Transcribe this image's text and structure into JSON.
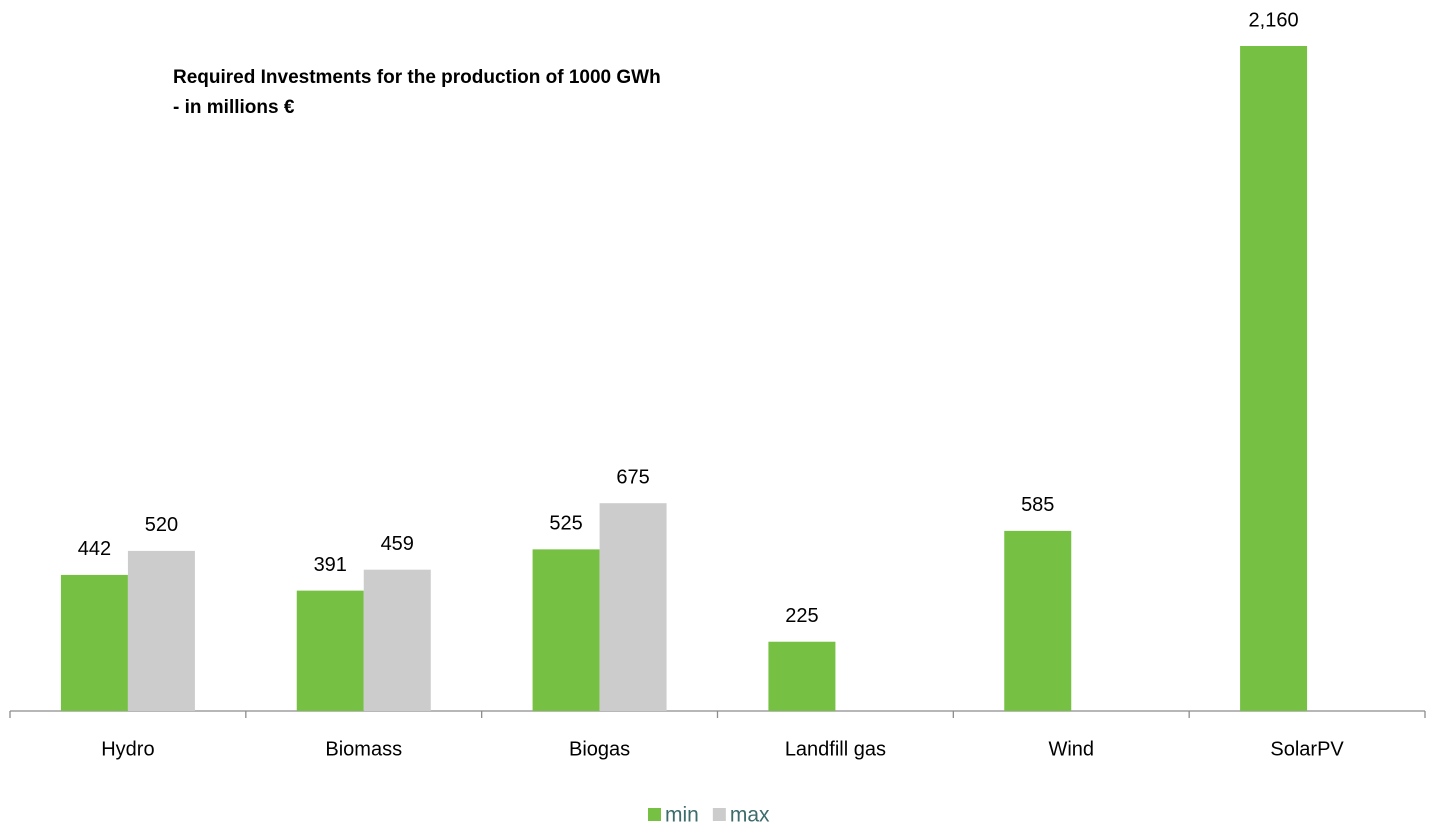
{
  "chart_data": {
    "type": "bar",
    "title": "Required Investments for the production of 1000 GWh",
    "subtitle": "-  in millions €",
    "categories": [
      "Hydro",
      "Biomass",
      "Biogas",
      "Landfill gas",
      "Wind",
      "SolarPV"
    ],
    "series": [
      {
        "name": "min",
        "color": "#76c043",
        "values": [
          442,
          391,
          525,
          225,
          585,
          2160
        ],
        "value_labels": [
          "442",
          "391",
          "525",
          "225",
          "585",
          "2,160"
        ]
      },
      {
        "name": "max",
        "color": "#cccccc",
        "values": [
          520,
          459,
          675,
          null,
          null,
          null
        ]
      }
    ],
    "legend": "bottom"
  }
}
